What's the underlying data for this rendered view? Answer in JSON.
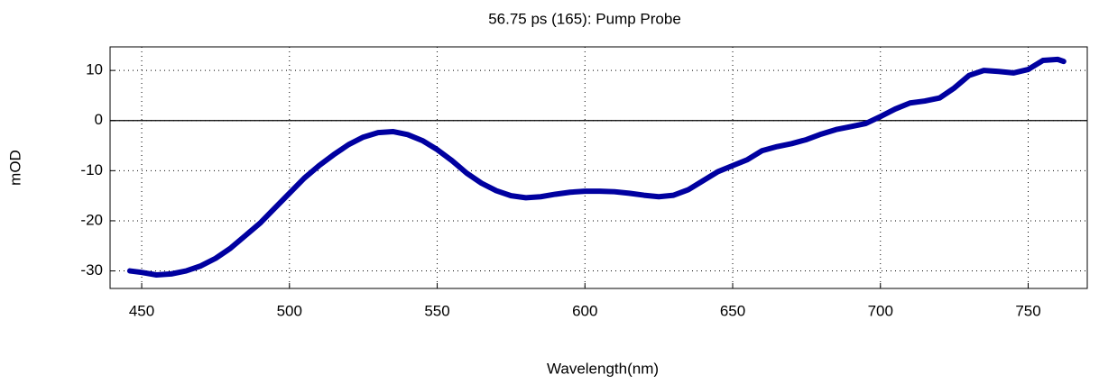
{
  "chart_data": {
    "type": "line",
    "title": "56.75 ps (165): Pump Probe",
    "x_label": "Wavelength(nm)",
    "y_label": "mOD",
    "x": [
      446,
      450,
      455,
      460,
      465,
      470,
      475,
      480,
      485,
      490,
      495,
      500,
      505,
      510,
      515,
      520,
      525,
      530,
      535,
      540,
      545,
      550,
      555,
      560,
      565,
      570,
      575,
      580,
      585,
      590,
      595,
      600,
      605,
      610,
      615,
      620,
      625,
      630,
      635,
      640,
      645,
      650,
      655,
      660,
      665,
      670,
      675,
      680,
      685,
      690,
      695,
      700,
      705,
      710,
      715,
      720,
      725,
      730,
      735,
      740,
      745,
      750,
      755,
      760,
      762
    ],
    "series": [
      {
        "name": "Pump Probe",
        "color": "#0000a0",
        "values": [
          -30,
          -30.3,
          -30.8,
          -30.6,
          -30,
          -29,
          -27.5,
          -25.5,
          -23,
          -20.5,
          -17.5,
          -14.5,
          -11.5,
          -9,
          -6.8,
          -4.8,
          -3.3,
          -2.4,
          -2.2,
          -2.8,
          -4,
          -5.8,
          -8,
          -10.5,
          -12.5,
          -14,
          -15,
          -15.4,
          -15.2,
          -14.7,
          -14.3,
          -14.1,
          -14.1,
          -14.2,
          -14.5,
          -14.9,
          -15.2,
          -14.9,
          -13.8,
          -12,
          -10.2,
          -9,
          -7.8,
          -6,
          -5.2,
          -4.6,
          -3.8,
          -2.7,
          -1.8,
          -1.2,
          -0.6,
          0.8,
          2.3,
          3.5,
          3.9,
          4.5,
          6.5,
          9,
          10,
          9.8,
          9.5,
          10.2,
          12,
          12.2,
          11.8
        ]
      }
    ],
    "xlim": [
      439.3,
      770
    ],
    "ylim": [
      -33.5,
      14.7
    ],
    "xticks": [
      450,
      500,
      550,
      600,
      650,
      700,
      750
    ],
    "yticks": [
      -30,
      -20,
      -10,
      0,
      10
    ],
    "grid": true
  }
}
